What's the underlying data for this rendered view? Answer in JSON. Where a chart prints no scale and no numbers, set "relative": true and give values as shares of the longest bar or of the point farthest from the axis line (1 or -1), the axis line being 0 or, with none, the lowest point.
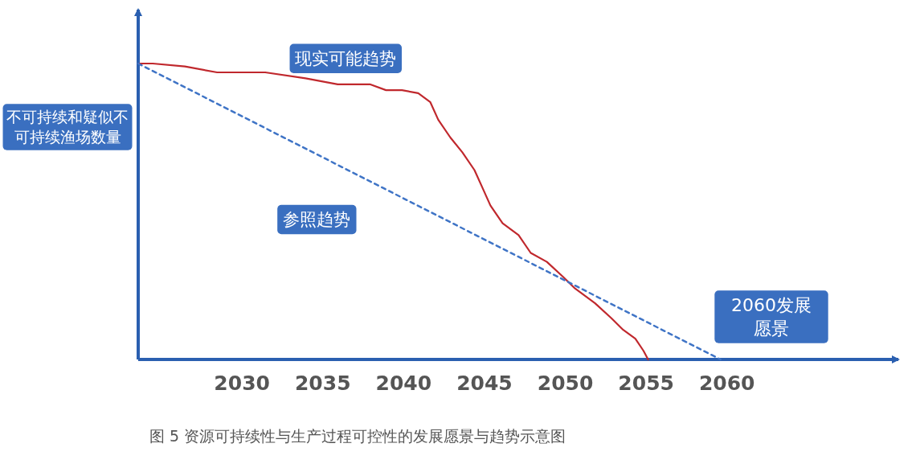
{
  "chart_data": {
    "type": "line",
    "relative": true,
    "ylabel": "不可持续和疑似不可持续渔场数量",
    "xlim": [
      2023.58,
      2070.6
    ],
    "xticks": [
      2030,
      2035,
      2040,
      2045,
      2050,
      2055,
      2060
    ],
    "grid": false,
    "marker": "none",
    "series": [
      {
        "name": "现实可能趋势",
        "color": "#c0282d",
        "line_style": "solid",
        "x": [
          2023.58,
          2024.48,
          2026.47,
          2028.46,
          2031.44,
          2033.93,
          2035.92,
          2037.91,
          2038.91,
          2039.9,
          2040.9,
          2041.64,
          2042.14,
          2042.89,
          2043.63,
          2044.38,
          2044.88,
          2045.37,
          2046.12,
          2047.11,
          2047.86,
          2048.86,
          2049.85,
          2050.6,
          2051.84,
          2052.84,
          2053.58,
          2054.33,
          2054.83,
          2055.12
        ],
        "values": [
          1.0,
          1.0,
          0.99,
          0.97,
          0.97,
          0.95,
          0.93,
          0.93,
          0.91,
          0.91,
          0.9,
          0.87,
          0.81,
          0.75,
          0.7,
          0.64,
          0.58,
          0.52,
          0.46,
          0.42,
          0.36,
          0.33,
          0.28,
          0.24,
          0.19,
          0.14,
          0.1,
          0.07,
          0.03,
          0.0
        ]
      },
      {
        "name": "参照趋势",
        "color": "#3f74c6",
        "line_style": "dashed",
        "x": [
          2023.58,
          2059.6
        ],
        "values": [
          1.0,
          0.0
        ]
      }
    ],
    "annotations": [
      "2060发展愿景",
      "图 5 资源可持续性与生产过程可控性的发展愿景与趋势示意图"
    ]
  }
}
